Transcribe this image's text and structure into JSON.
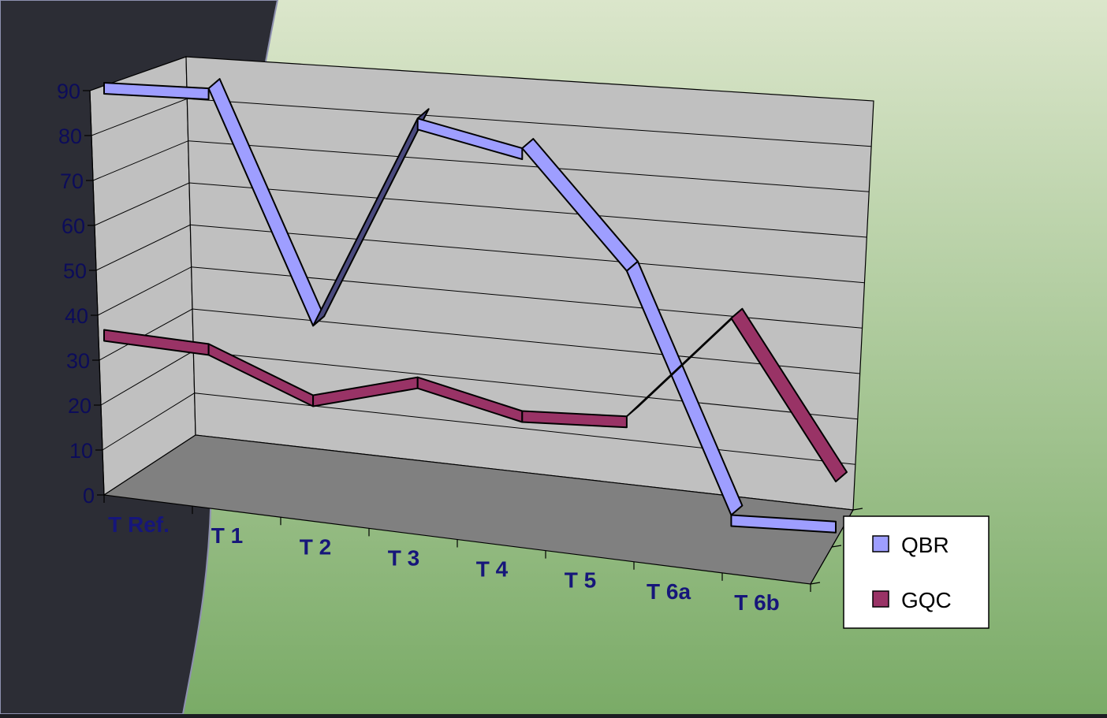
{
  "colors": {
    "background_top": "#dbe6cb",
    "background_bottom": "#7aab67",
    "swoosh": "#2c2d35",
    "qbr": "#9e9eff",
    "qbr_shadow": "#4a4a7e",
    "gqc": "#993366",
    "gqc_shadow": "#5a1c3c",
    "back_wall": "#c0c0c0",
    "floor": "#808080",
    "tick_text": "#0c0c5a",
    "category_text": "#16167a"
  },
  "chart_data": {
    "type": "line",
    "style": "3d",
    "categories": [
      "T Ref.",
      "T 1",
      "T 2",
      "T 3",
      "T 4",
      "T 5",
      "T 6a",
      "T 6b"
    ],
    "series": [
      {
        "name": "QBR",
        "color": "#9e9eff",
        "values": [
          90,
          90,
          40,
          86,
          81,
          57,
          9,
          10
        ]
      },
      {
        "name": "GQC",
        "color": "#993366",
        "values": [
          35,
          34,
          25,
          31,
          26,
          27,
          49,
          18
        ]
      }
    ],
    "ylim": [
      0,
      90
    ],
    "yticks": [
      "0",
      "10",
      "20",
      "30",
      "40",
      "50",
      "60",
      "70",
      "80",
      "90"
    ],
    "grid": true,
    "legend": "right"
  }
}
